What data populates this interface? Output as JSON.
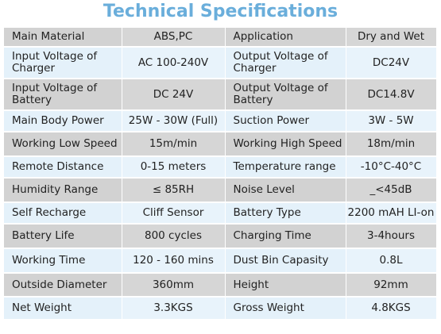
{
  "title": "Technical Specifications",
  "rows": [
    {
      "l1": "Main Material",
      "v1": "ABS,PC",
      "l2": "Application",
      "v2": "Dry and Wet"
    },
    {
      "l1": "Input Voltage of Charger",
      "v1": "AC 100-240V",
      "l2": "Output Voltage of Charger",
      "v2": "DC24V"
    },
    {
      "l1": "Input Voltage of Battery",
      "v1": "DC 24V",
      "l2": "Output Voltage of Battery",
      "v2": "DC14.8V"
    },
    {
      "l1": "Main Body Power",
      "v1": "25W - 30W (Full)",
      "l2": "Suction Power",
      "v2": "3W - 5W"
    },
    {
      "l1": "Working Low Speed",
      "v1": "15m/min",
      "l2": "Working High Speed",
      "v2": "18m/min"
    },
    {
      "l1": "Remote Distance",
      "v1": "0-15 meters",
      "l2": "Temperature range",
      "v2": "-10°C-40°C"
    },
    {
      "l1": "Humidity Range",
      "v1": "≤ 85RH",
      "l2": "Noise Level",
      "v2": "_<45dB"
    },
    {
      "l1": "Self Recharge",
      "v1": "Cliff Sensor",
      "l2": "Battery Type",
      "v2": "2200 mAH LI-on"
    },
    {
      "l1": "Battery Life",
      "v1": "800 cycles",
      "l2": "Charging Time",
      "v2": "3-4hours"
    },
    {
      "l1": "Working Time",
      "v1": "120 - 160 mins",
      "l2": "Dust Bin Capasity",
      "v2": "0.8L"
    },
    {
      "l1": "Outside Diameter",
      "v1": "360mm",
      "l2": "Height",
      "v2": "92mm"
    },
    {
      "l1": "Net Weight",
      "v1": "3.3KGS",
      "l2": "Gross Weight",
      "v2": "4.8KGS"
    }
  ],
  "colors": {
    "title": "#6aaedb",
    "row_odd": "#d6d6d6",
    "row_even": "#e8f3fb"
  }
}
